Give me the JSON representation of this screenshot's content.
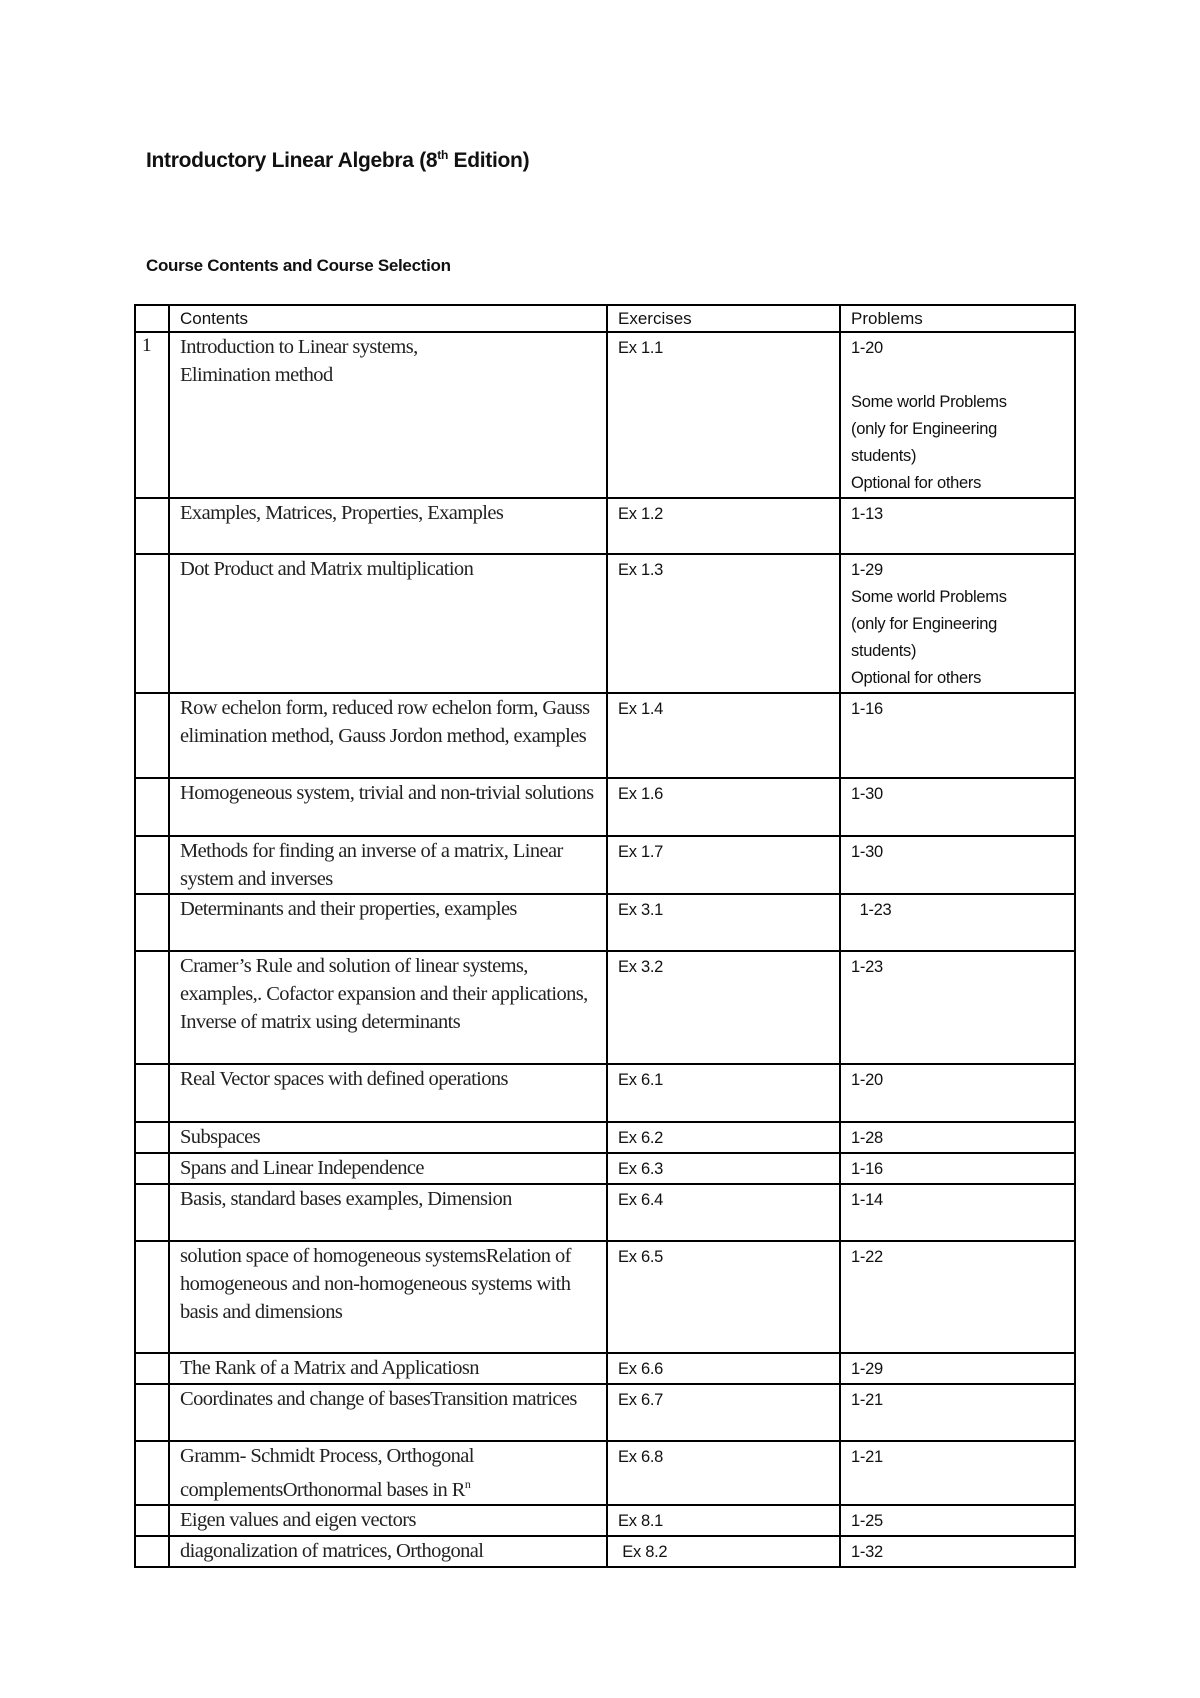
{
  "document": {
    "title_main": "Introductory Linear Algebra (8",
    "title_sup": "th",
    "title_end": " Edition)",
    "subtitle": "Course Contents and Course Selection"
  },
  "table": {
    "headers": [
      "",
      "Contents",
      "Exercises",
      "Problems"
    ],
    "rows": [
      {
        "num": "1",
        "content": "Introduction to Linear systems,\nElimination method",
        "exercise": "Ex 1.1",
        "problems": [
          "1-20",
          "",
          "Some world Problems",
          "(only for Engineering",
          "students)",
          "Optional for others"
        ]
      },
      {
        "num": "",
        "content": "Examples, Matrices, Properties, Examples",
        "exercise": "Ex 1.2",
        "problems": [
          "1-13"
        ]
      },
      {
        "num": "",
        "content": "Dot Product and Matrix multiplication",
        "exercise": "Ex 1.3",
        "problems": [
          "1-29",
          "Some world Problems",
          "(only for Engineering",
          "students)",
          "Optional for others"
        ]
      },
      {
        "num": "",
        "content": "Row echelon form, reduced row echelon form, Gauss elimination method, Gauss Jordon method, examples",
        "exercise": "Ex 1.4",
        "problems": [
          "1-16"
        ]
      },
      {
        "num": "",
        "content": "Homogeneous system, trivial and non-trivial solutions",
        "exercise": "Ex 1.6",
        "problems": [
          "1-30"
        ]
      },
      {
        "num": "",
        "content": "Methods for finding an inverse of a matrix, Linear system and inverses",
        "exercise": "Ex 1.7",
        "problems": [
          "1-30"
        ]
      },
      {
        "num": "",
        "content": "Determinants and their properties, examples",
        "exercise": "Ex 3.1",
        "problems": [
          "  1-23"
        ]
      },
      {
        "num": "",
        "content": "Cramer’s Rule and solution of linear systems, examples,. Cofactor expansion and their applications, Inverse of matrix using determinants",
        "exercise": "Ex 3.2",
        "problems": [
          "1-23"
        ]
      },
      {
        "num": "",
        "content": "Real Vector spaces with defined operations",
        "exercise": "Ex 6.1",
        "problems": [
          "1-20"
        ]
      },
      {
        "num": "",
        "content": "Subspaces",
        "exercise": "Ex 6.2",
        "problems": [
          "1-28"
        ]
      },
      {
        "num": "",
        "content": "Spans and Linear Independence",
        "exercise": "Ex 6.3",
        "problems": [
          "1-16"
        ]
      },
      {
        "num": "",
        "content": "Basis, standard bases examples, Dimension",
        "exercise": "Ex 6.4",
        "problems": [
          "1-14"
        ]
      },
      {
        "num": "",
        "content": "solution space of homogeneous systemsRelation of homogeneous and non-homogeneous systems with basis and dimensions",
        "exercise": "Ex 6.5",
        "problems": [
          "1-22"
        ]
      },
      {
        "num": "",
        "content": "The Rank of a Matrix and Applicatiosn",
        "exercise": "Ex 6.6",
        "problems": [
          "1-29"
        ]
      },
      {
        "num": "",
        "content": "Coordinates and change of basesTransition matrices",
        "exercise": "Ex 6.7",
        "problems": [
          "1-21"
        ]
      },
      {
        "num": "",
        "content": "Gramm- Schmidt Process, Orthogonal complementsOrthonormal bases in R",
        "content_sup": "n",
        "exercise": "Ex 6.8",
        "problems": [
          "1-21"
        ]
      },
      {
        "num": "",
        "content": "Eigen values and eigen vectors",
        "exercise": "Ex 8.1",
        "problems": [
          "1-25"
        ]
      },
      {
        "num": "",
        "content": "diagonalization of matrices, Orthogonal",
        "exercise": " Ex 8.2",
        "problems": [
          "1-32"
        ]
      }
    ]
  }
}
